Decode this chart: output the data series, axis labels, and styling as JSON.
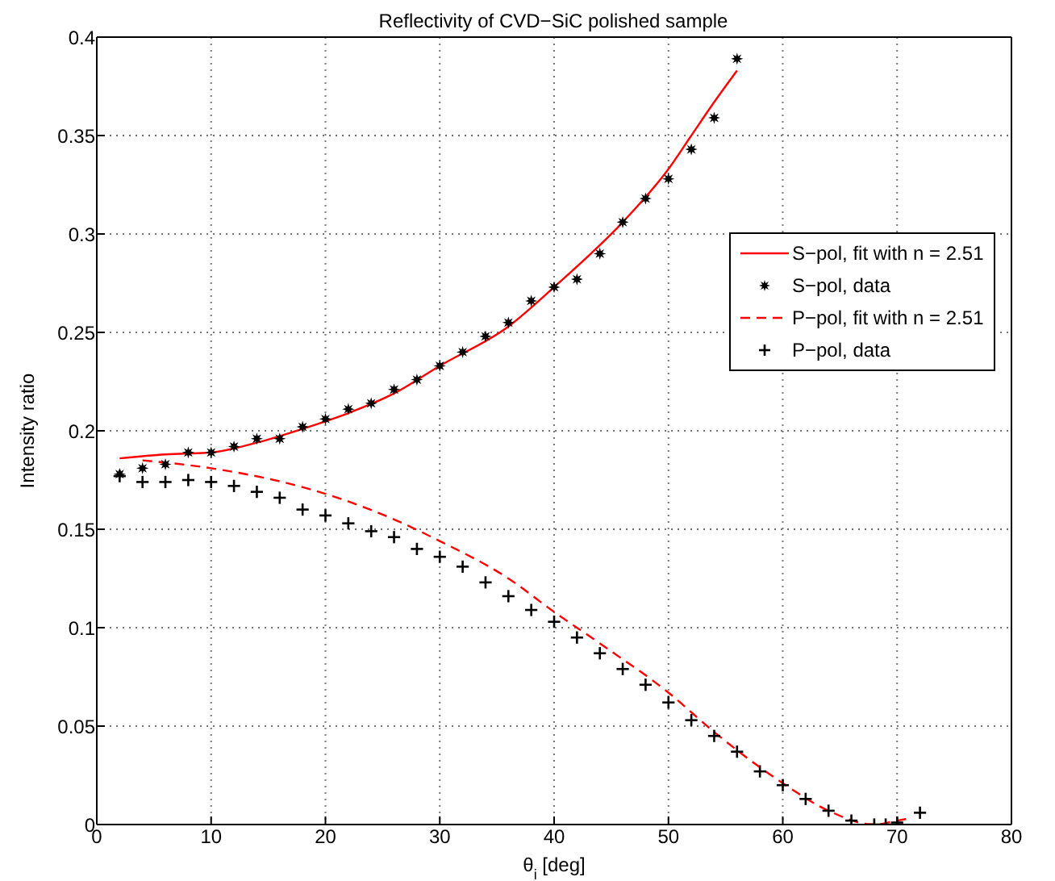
{
  "chart_data": {
    "type": "line",
    "title": "Reflectivity of CVD−SiC polished sample",
    "xlabel": "θ$_{i}$ [deg]",
    "ylabel": "Intensity ratio",
    "xlim": [
      0,
      80
    ],
    "xticks": [
      0,
      10,
      20,
      30,
      40,
      50,
      60,
      70,
      80
    ],
    "ylim": [
      0,
      0.4
    ],
    "yticks": [
      0,
      0.05,
      0.1,
      0.15,
      0.2,
      0.25,
      0.3,
      0.35,
      0.4
    ],
    "grid": true,
    "legend": "right",
    "series": [
      {
        "name": "S−pol, fit with n = 2.51",
        "color": "#ff0000",
        "marker": "none",
        "line_style": "solid",
        "x": [
          2,
          6,
          10,
          14,
          18,
          22,
          26,
          30,
          36,
          40,
          46,
          50,
          52,
          54,
          56
        ],
        "values": [
          0.186,
          0.188,
          0.189,
          0.194,
          0.201,
          0.209,
          0.219,
          0.233,
          0.253,
          0.273,
          0.306,
          0.333,
          0.35,
          0.367,
          0.383
        ]
      },
      {
        "name": "S−pol, data",
        "type": "scatter",
        "color": "#000000",
        "marker": "star",
        "x": [
          2,
          4,
          6,
          8,
          10,
          12,
          14,
          16,
          18,
          20,
          22,
          24,
          26,
          28,
          30,
          32,
          34,
          36,
          38,
          40,
          42,
          44,
          46,
          48,
          50,
          52,
          54,
          56
        ],
        "values": [
          0.178,
          0.181,
          0.183,
          0.189,
          0.189,
          0.192,
          0.196,
          0.196,
          0.202,
          0.206,
          0.211,
          0.214,
          0.221,
          0.226,
          0.233,
          0.24,
          0.248,
          0.255,
          0.266,
          0.273,
          0.277,
          0.29,
          0.306,
          0.318,
          0.328,
          0.343,
          0.359,
          0.389
        ]
      },
      {
        "name": "P−pol, fit with n = 2.51",
        "color": "#ff0000",
        "marker": "none",
        "line_style": "dashed",
        "x": [
          4,
          10,
          20,
          26,
          30,
          36,
          40,
          44,
          50,
          54,
          60,
          64,
          68,
          70,
          71
        ],
        "values": [
          0.185,
          0.181,
          0.168,
          0.155,
          0.144,
          0.125,
          0.108,
          0.092,
          0.067,
          0.047,
          0.021,
          0.007,
          0,
          0.002,
          0.003
        ]
      },
      {
        "name": "P−pol, data",
        "type": "scatter",
        "color": "#000000",
        "marker": "cross",
        "x": [
          2,
          4,
          6,
          8,
          10,
          12,
          14,
          16,
          18,
          20,
          22,
          24,
          26,
          28,
          30,
          32,
          34,
          36,
          38,
          40,
          42,
          44,
          46,
          48,
          50,
          52,
          54,
          56,
          58,
          60,
          62,
          64,
          66,
          68,
          69,
          70,
          72
        ],
        "values": [
          0.177,
          0.174,
          0.174,
          0.175,
          0.174,
          0.172,
          0.169,
          0.166,
          0.16,
          0.157,
          0.153,
          0.149,
          0.146,
          0.14,
          0.136,
          0.131,
          0.123,
          0.116,
          0.109,
          0.103,
          0.095,
          0.087,
          0.079,
          0.071,
          0.062,
          0.053,
          0.045,
          0.037,
          0.027,
          0.02,
          0.013,
          0.007,
          0.002,
          0,
          0,
          0.001,
          0.006
        ]
      }
    ]
  }
}
